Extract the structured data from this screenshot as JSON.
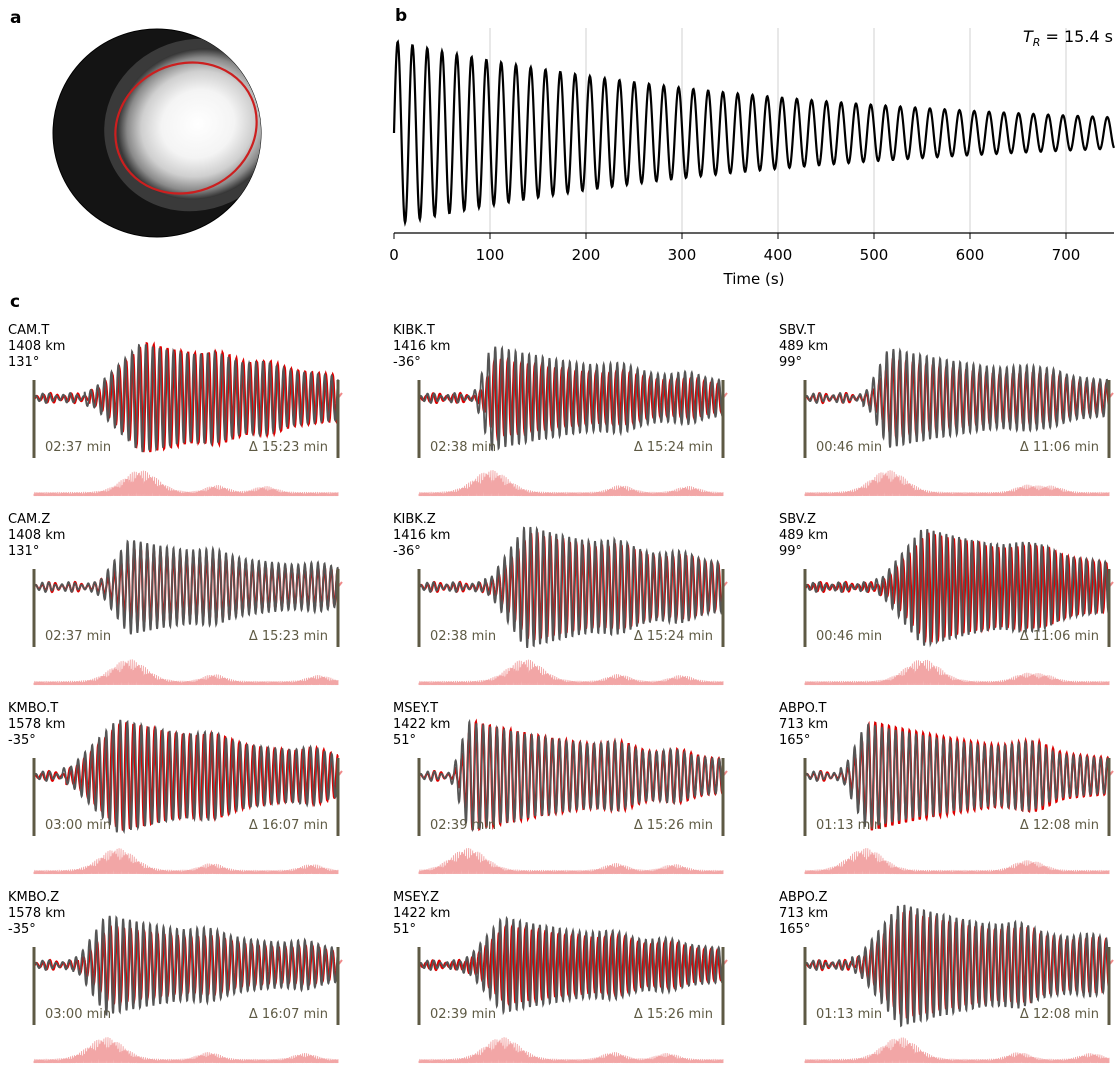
{
  "panels": {
    "a": "a",
    "b": "b",
    "c": "c"
  },
  "chart_data": [
    {
      "id": "a",
      "type": "heatmap",
      "description_kind": "focal sphere projection with ellipse contour",
      "colors": {
        "outer": "#111111",
        "center": "#ffffff",
        "contour": "#cc1f1f"
      }
    },
    {
      "id": "b",
      "type": "line",
      "xlabel": "Time (s)",
      "xlim": [
        0,
        750
      ],
      "x_ticks": [
        0,
        100,
        200,
        300,
        400,
        500,
        600,
        700
      ],
      "grid": "vertical",
      "annotation": "T_R = 15.4 s",
      "annotation_parts": {
        "T": "T",
        "sub": "R",
        "rest": " = 15.4 s"
      },
      "period_s": 15.4,
      "initial_amplitude": 1.0,
      "final_amplitude": 0.17,
      "line_color": "#000000"
    },
    {
      "id": "c",
      "type": "line",
      "colors": {
        "observed": "#555555",
        "synthetic": "#dd0000",
        "envelope": "#f2a6a6",
        "bar": "#5e5a44",
        "time_text": "#5e5a44"
      },
      "stations": [
        {
          "name": "CAM.T",
          "distance": "1408 km",
          "azimuth": "131°",
          "start": "02:37 min",
          "duration": "Δ 15:23 min"
        },
        {
          "name": "KIBK.T",
          "distance": "1416 km",
          "azimuth": "-36°",
          "start": "02:38 min",
          "duration": "Δ 15:24 min"
        },
        {
          "name": "SBV.T",
          "distance": "489 km",
          "azimuth": "99°",
          "start": "00:46 min",
          "duration": "Δ 11:06 min"
        },
        {
          "name": "CAM.Z",
          "distance": "1408 km",
          "azimuth": "131°",
          "start": "02:37 min",
          "duration": "Δ 15:23 min"
        },
        {
          "name": "KIBK.Z",
          "distance": "1416 km",
          "azimuth": "-36°",
          "start": "02:38 min",
          "duration": "Δ 15:24 min"
        },
        {
          "name": "SBV.Z",
          "distance": "489 km",
          "azimuth": "99°",
          "start": "00:46 min",
          "duration": "Δ 11:06 min"
        },
        {
          "name": "KMBO.T",
          "distance": "1578 km",
          "azimuth": "-35°",
          "start": "03:00 min",
          "duration": "Δ 16:07 min"
        },
        {
          "name": "MSEY.T",
          "distance": "1422 km",
          "azimuth": "51°",
          "start": "02:39 min",
          "duration": "Δ 15:26 min"
        },
        {
          "name": "ABPO.T",
          "distance": "713 km",
          "azimuth": "165°",
          "start": "01:13 min",
          "duration": "Δ 12:08 min"
        },
        {
          "name": "KMBO.Z",
          "distance": "1578 km",
          "azimuth": "-35°",
          "start": "03:00 min",
          "duration": "Δ 16:07 min"
        },
        {
          "name": "MSEY.Z",
          "distance": "1422 km",
          "azimuth": "51°",
          "start": "02:39 min",
          "duration": "Δ 15:26 min"
        },
        {
          "name": "ABPO.Z",
          "distance": "713 km",
          "azimuth": "165°",
          "start": "01:13 min",
          "duration": "Δ 12:08 min"
        }
      ]
    }
  ]
}
